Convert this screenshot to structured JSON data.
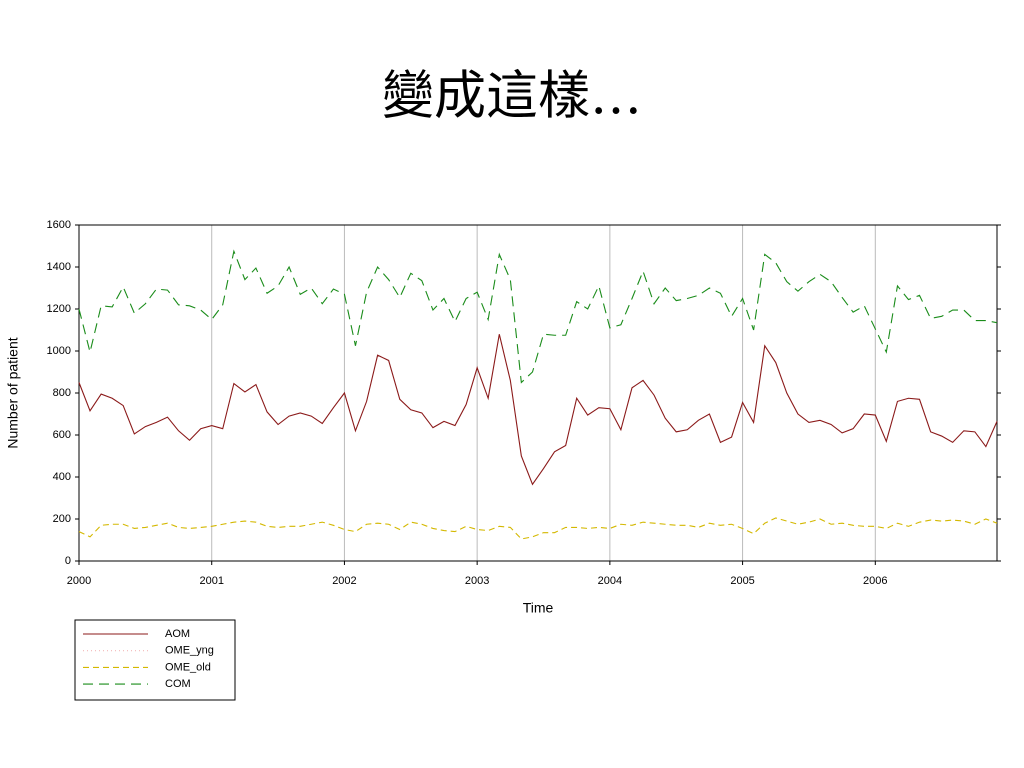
{
  "chart_data": {
    "type": "line",
    "title": "變成這樣…",
    "xlabel": "Time",
    "ylabel": "Number of patient",
    "x": [
      2000,
      2000.083,
      2000.167,
      2000.25,
      2000.333,
      2000.417,
      2000.5,
      2000.583,
      2000.667,
      2000.75,
      2000.833,
      2000.917,
      2001,
      2001.083,
      2001.167,
      2001.25,
      2001.333,
      2001.417,
      2001.5,
      2001.583,
      2001.667,
      2001.75,
      2001.833,
      2001.917,
      2002,
      2002.083,
      2002.167,
      2002.25,
      2002.333,
      2002.417,
      2002.5,
      2002.583,
      2002.667,
      2002.75,
      2002.833,
      2002.917,
      2003,
      2003.083,
      2003.167,
      2003.25,
      2003.333,
      2003.417,
      2003.5,
      2003.583,
      2003.667,
      2003.75,
      2003.833,
      2003.917,
      2004,
      2004.083,
      2004.167,
      2004.25,
      2004.333,
      2004.417,
      2004.5,
      2004.583,
      2004.667,
      2004.75,
      2004.833,
      2004.917,
      2005,
      2005.083,
      2005.167,
      2005.25,
      2005.333,
      2005.417,
      2005.5,
      2005.583,
      2005.667,
      2005.75,
      2005.833,
      2005.917,
      2006,
      2006.083,
      2006.167,
      2006.25,
      2006.333,
      2006.417,
      2006.5,
      2006.583,
      2006.667,
      2006.75,
      2006.833,
      2006.917
    ],
    "series": [
      {
        "name": "AOM",
        "color": "#8b1a1a",
        "line_style": "solid",
        "values": [
          850,
          715,
          795,
          775,
          740,
          605,
          640,
          660,
          685,
          620,
          575,
          630,
          645,
          630,
          845,
          805,
          840,
          710,
          650,
          690,
          705,
          690,
          655,
          730,
          800,
          620,
          760,
          980,
          955,
          770,
          720,
          705,
          635,
          665,
          645,
          745,
          920,
          775,
          1080,
          860,
          500,
          365,
          440,
          520,
          550,
          775,
          695,
          730,
          725,
          625,
          825,
          860,
          790,
          680,
          615,
          625,
          670,
          700,
          565,
          590,
          755,
          660,
          1025,
          945,
          800,
          700,
          660,
          670,
          650,
          610,
          630,
          700,
          695,
          570,
          760,
          775,
          770,
          615,
          595,
          565,
          620,
          615,
          545,
          665
        ]
      },
      {
        "name": "OME_yng",
        "color": "#f2b8b8",
        "line_style": "dotted",
        "values": [
          null,
          null,
          null,
          null,
          null,
          null,
          null,
          null,
          null,
          null,
          null,
          null,
          null,
          null,
          null,
          null,
          null,
          null,
          null,
          null,
          null,
          null,
          null,
          null,
          null,
          null,
          null,
          null,
          null,
          null,
          null,
          null,
          null,
          null,
          null,
          null,
          null,
          null,
          null,
          null,
          null,
          null,
          null,
          null,
          null,
          null,
          null,
          null,
          null,
          null,
          null,
          null,
          null,
          null,
          null,
          null,
          null,
          null,
          null,
          null,
          null,
          null,
          null,
          null,
          null,
          null,
          null,
          null,
          null,
          null,
          null,
          null,
          null,
          null,
          null,
          null,
          null,
          null,
          null,
          null,
          null,
          null,
          null,
          null
        ]
      },
      {
        "name": "OME_old",
        "color": "#d4b800",
        "line_style": "dashed",
        "values": [
          140,
          115,
          170,
          175,
          175,
          155,
          160,
          170,
          180,
          160,
          155,
          160,
          165,
          175,
          185,
          190,
          185,
          165,
          160,
          165,
          165,
          175,
          185,
          170,
          150,
          140,
          175,
          180,
          175,
          150,
          185,
          175,
          155,
          145,
          140,
          165,
          150,
          145,
          165,
          160,
          105,
          115,
          135,
          135,
          160,
          160,
          155,
          160,
          155,
          175,
          170,
          185,
          180,
          175,
          170,
          170,
          160,
          180,
          170,
          175,
          155,
          130,
          180,
          205,
          190,
          175,
          185,
          200,
          175,
          180,
          170,
          165,
          165,
          155,
          180,
          165,
          185,
          195,
          190,
          195,
          190,
          175,
          200,
          180
        ]
      },
      {
        "name": "COM",
        "color": "#1a8c1a",
        "line_style": "longdash",
        "values": [
          1200,
          995,
          1215,
          1210,
          1305,
          1180,
          1225,
          1295,
          1290,
          1220,
          1215,
          1195,
          1150,
          1220,
          1475,
          1340,
          1395,
          1275,
          1310,
          1400,
          1270,
          1300,
          1225,
          1295,
          1270,
          1025,
          1280,
          1400,
          1340,
          1255,
          1370,
          1335,
          1195,
          1250,
          1140,
          1250,
          1280,
          1150,
          1460,
          1340,
          850,
          900,
          1080,
          1075,
          1075,
          1235,
          1200,
          1310,
          1110,
          1125,
          1250,
          1380,
          1225,
          1300,
          1240,
          1250,
          1265,
          1300,
          1275,
          1165,
          1250,
          1100,
          1460,
          1420,
          1330,
          1285,
          1330,
          1365,
          1330,
          1255,
          1185,
          1215,
          1105,
          995,
          1310,
          1245,
          1265,
          1155,
          1165,
          1195,
          1195,
          1145,
          1145,
          1135
        ]
      }
    ],
    "xlim": [
      2000,
      2006.917
    ],
    "xticks": [
      2000,
      2001,
      2002,
      2003,
      2004,
      2005,
      2006
    ],
    "ylim": [
      0,
      1600
    ],
    "yticks": [
      0,
      200,
      400,
      600,
      800,
      1000,
      1200,
      1400,
      1600
    ],
    "grid": true,
    "legend": "bottom-left"
  }
}
